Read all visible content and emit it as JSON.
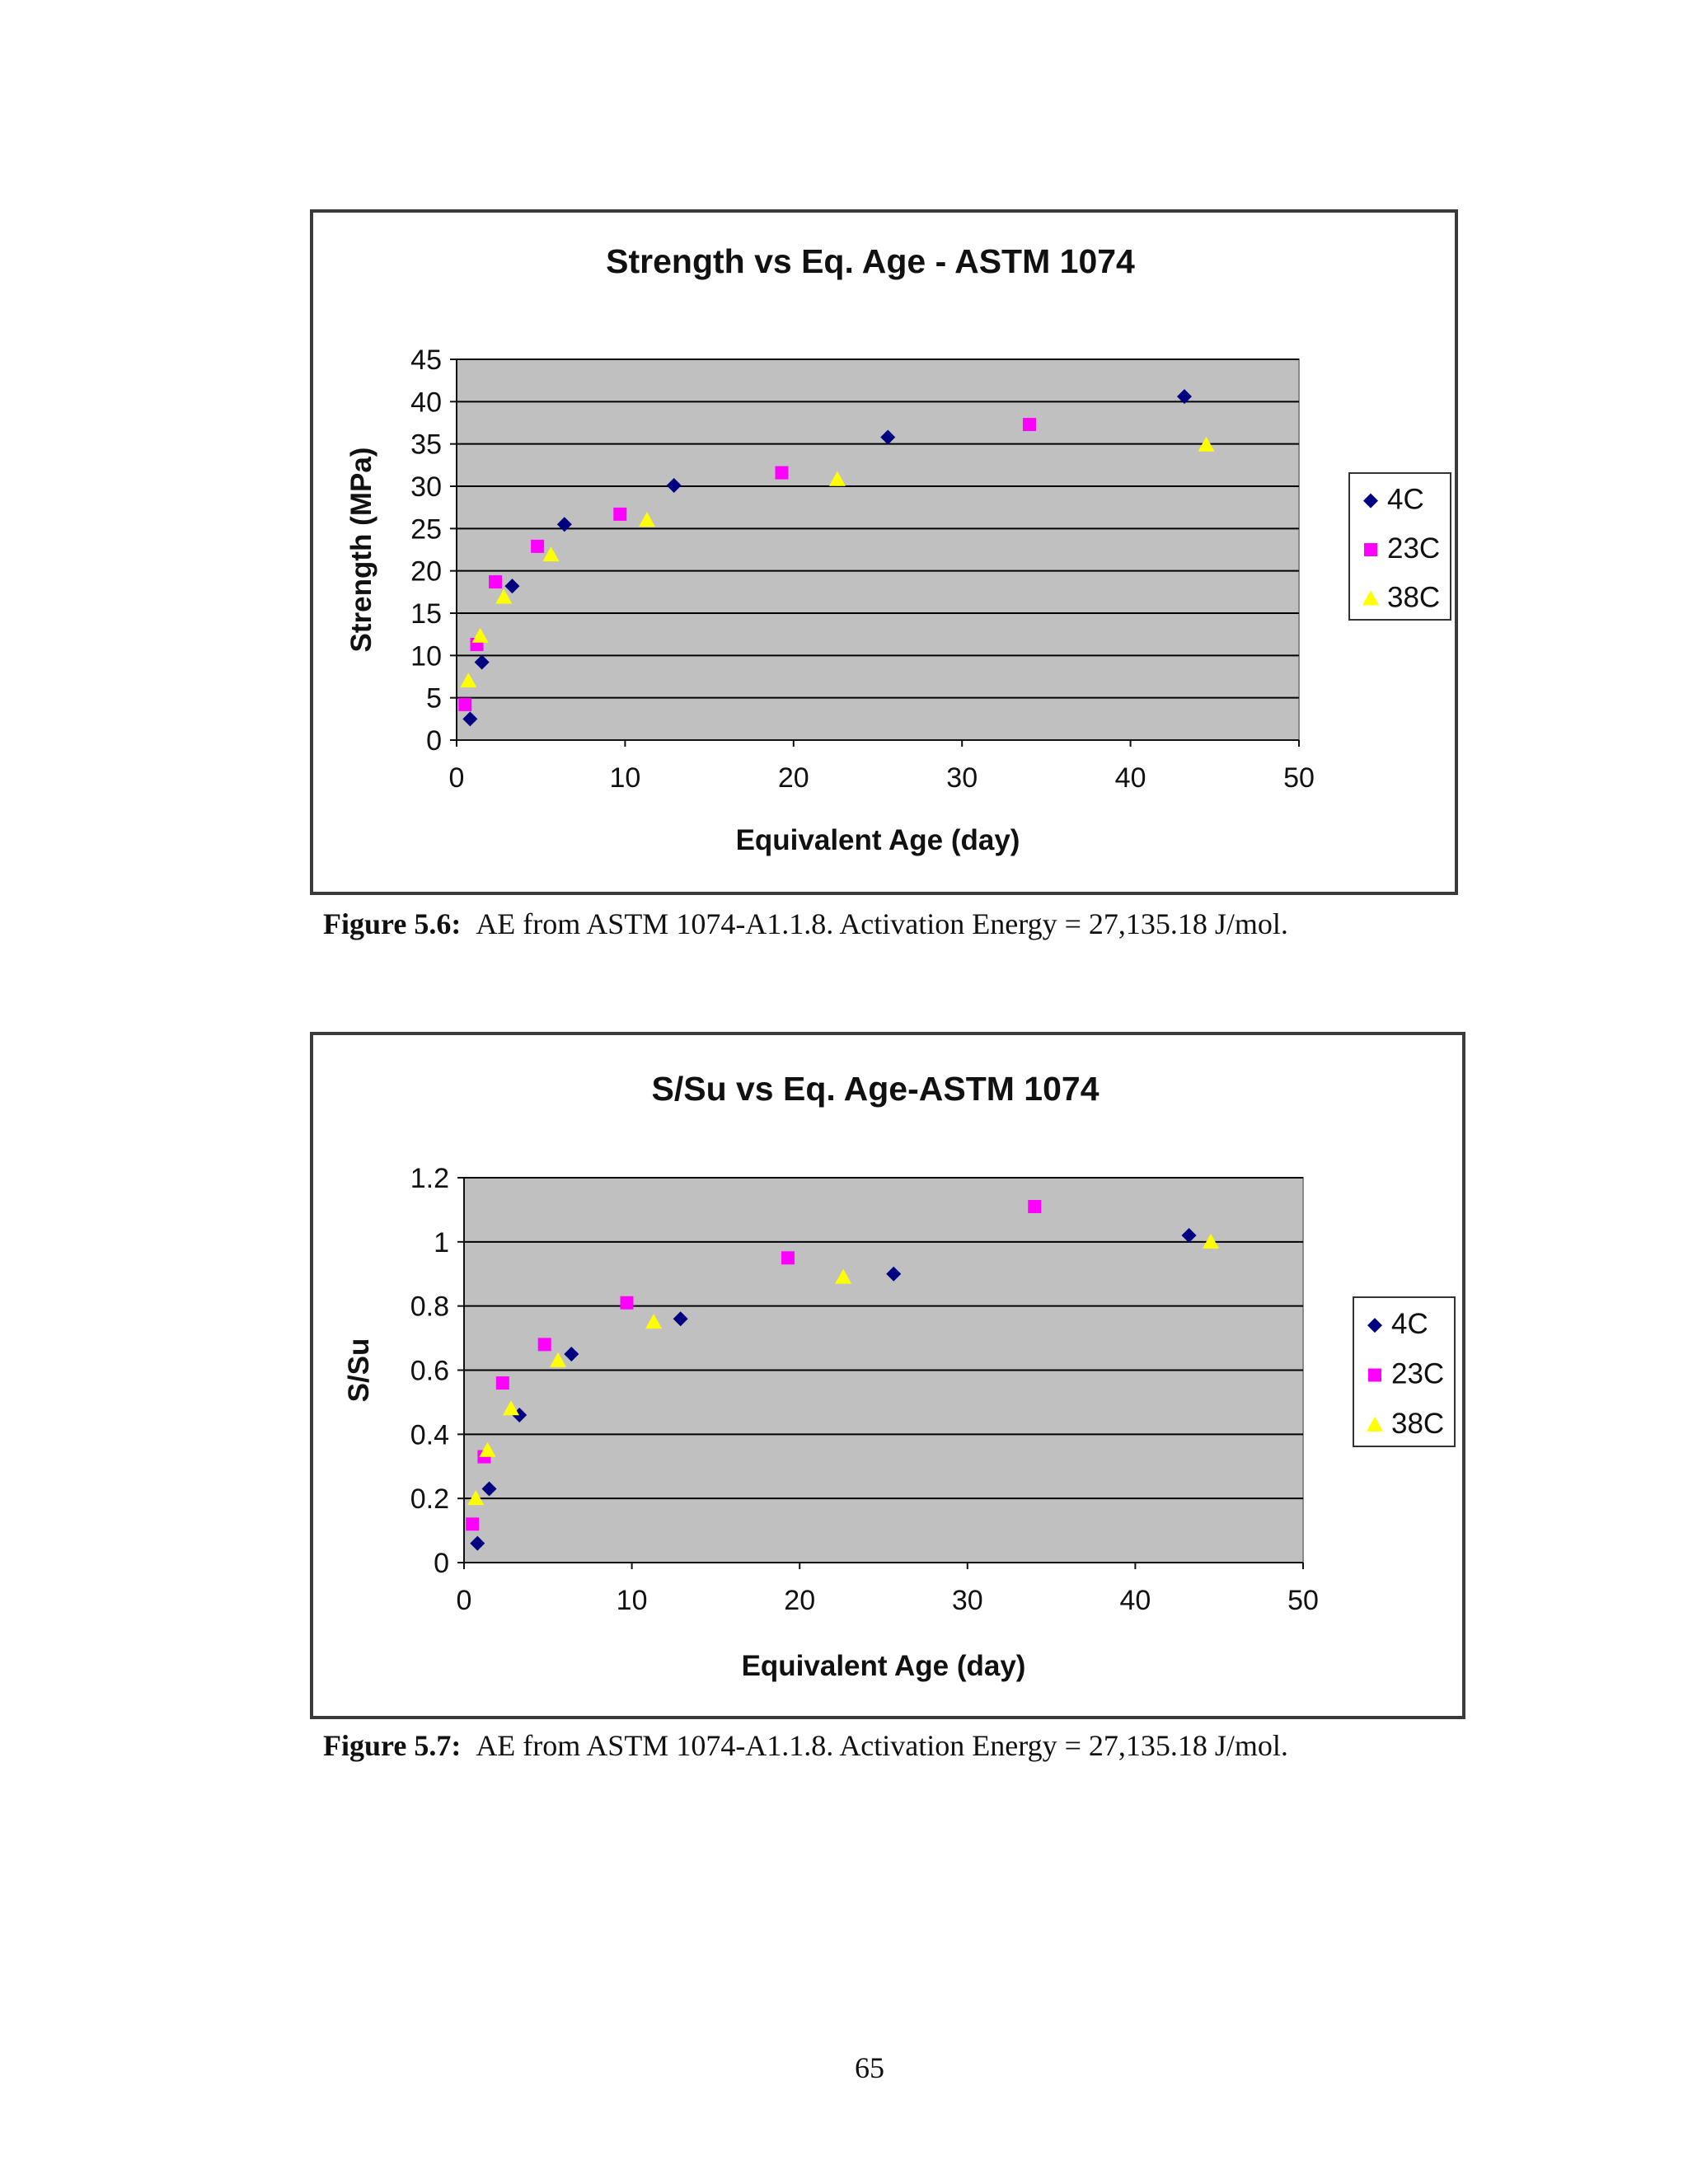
{
  "page_number": "65",
  "captions": [
    {
      "label": "Figure 5.6:",
      "text": "AE from ASTM 1074-A1.1.8.  Activation Energy = 27,135.18 J/mol."
    },
    {
      "label": "Figure 5.7:",
      "text": "AE from ASTM 1074-A1.1.8.  Activation Energy = 27,135.18 J/mol."
    }
  ],
  "colors": {
    "plot_bg": "#c0c0c0",
    "gridline": "#000000",
    "frame": "#3a3a3a",
    "4C": "#000080",
    "23C": "#ff00ff",
    "38C": "#ffff00"
  },
  "chart_data": [
    {
      "type": "scatter",
      "title": "Strength vs Eq. Age - ASTM 1074",
      "xlabel": "Equivalent Age (day)",
      "ylabel": "Strength (MPa)",
      "xlim": [
        0,
        50
      ],
      "ylim": [
        0,
        45
      ],
      "xticks": [
        0,
        10,
        20,
        30,
        40,
        50
      ],
      "yticks": [
        0,
        5,
        10,
        15,
        20,
        25,
        30,
        35,
        40,
        45
      ],
      "grid": "horizontal major gridlines",
      "legend": "right",
      "series": [
        {
          "name": "4C",
          "marker": "diamond",
          "color": "#000080",
          "points": [
            [
              0.8,
              2.5
            ],
            [
              1.5,
              9.2
            ],
            [
              3.3,
              18.2
            ],
            [
              6.4,
              25.5
            ],
            [
              12.9,
              30.1
            ],
            [
              25.6,
              35.8
            ],
            [
              43.2,
              40.6
            ]
          ]
        },
        {
          "name": "23C",
          "marker": "square",
          "color": "#ff00ff",
          "points": [
            [
              0.5,
              4.2
            ],
            [
              1.2,
              11.3
            ],
            [
              2.3,
              18.7
            ],
            [
              4.8,
              22.9
            ],
            [
              9.7,
              26.7
            ],
            [
              19.3,
              31.6
            ],
            [
              34.0,
              37.3
            ]
          ]
        },
        {
          "name": "38C",
          "marker": "triangle",
          "color": "#ffff00",
          "points": [
            [
              0.7,
              7.0
            ],
            [
              1.4,
              12.3
            ],
            [
              2.8,
              16.9
            ],
            [
              5.6,
              21.9
            ],
            [
              11.3,
              26.0
            ],
            [
              22.6,
              30.8
            ],
            [
              44.5,
              34.9
            ]
          ]
        }
      ]
    },
    {
      "type": "scatter",
      "title": "S/Su vs Eq. Age-ASTM 1074",
      "xlabel": "Equivalent Age (day)",
      "ylabel": "S/Su",
      "xlim": [
        0,
        50
      ],
      "ylim": [
        0,
        1.2
      ],
      "xticks": [
        0,
        10,
        20,
        30,
        40,
        50
      ],
      "yticks": [
        0,
        0.2,
        0.4,
        0.6,
        0.8,
        1,
        1.2
      ],
      "grid": "horizontal major gridlines",
      "legend": "right",
      "series": [
        {
          "name": "4C",
          "marker": "diamond",
          "color": "#000080",
          "points": [
            [
              0.8,
              0.06
            ],
            [
              1.5,
              0.23
            ],
            [
              3.3,
              0.46
            ],
            [
              6.4,
              0.65
            ],
            [
              12.9,
              0.76
            ],
            [
              25.6,
              0.9
            ],
            [
              43.2,
              1.02
            ]
          ]
        },
        {
          "name": "23C",
          "marker": "square",
          "color": "#ff00ff",
          "points": [
            [
              0.5,
              0.12
            ],
            [
              1.2,
              0.33
            ],
            [
              2.3,
              0.56
            ],
            [
              4.8,
              0.68
            ],
            [
              9.7,
              0.81
            ],
            [
              19.3,
              0.95
            ],
            [
              34.0,
              1.11
            ]
          ]
        },
        {
          "name": "38C",
          "marker": "triangle",
          "color": "#ffff00",
          "points": [
            [
              0.7,
              0.2
            ],
            [
              1.4,
              0.35
            ],
            [
              2.8,
              0.48
            ],
            [
              5.6,
              0.63
            ],
            [
              11.3,
              0.75
            ],
            [
              22.6,
              0.89
            ],
            [
              44.5,
              1.0
            ]
          ]
        }
      ]
    }
  ]
}
